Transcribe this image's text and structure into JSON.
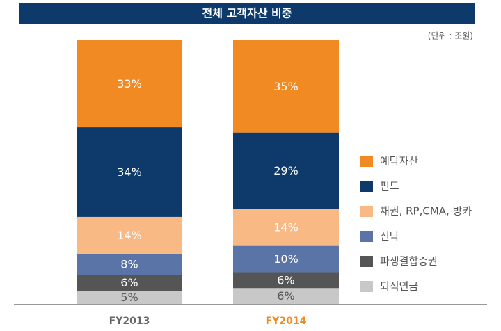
{
  "chart_data": {
    "type": "stacked_bar",
    "title": "전체 고객자산 비중",
    "subtitle": "(단위 : 조원)",
    "categories": [
      "FY2013",
      "FY2014"
    ],
    "category_colors": [
      "#666666",
      "#f28a23"
    ],
    "ylim": [
      0,
      100
    ],
    "series": [
      {
        "name": "예탁자산",
        "color": "#f28a23",
        "label_color": "#ffffff",
        "values": [
          33,
          35
        ],
        "value_labels": [
          "33%",
          "35%"
        ]
      },
      {
        "name": "펀드",
        "color": "#0d3a6b",
        "label_color": "#ffffff",
        "values": [
          34,
          29
        ],
        "value_labels": [
          "34%",
          "29%"
        ]
      },
      {
        "name": "채권, RP,CMA, 방카",
        "color": "#f9b985",
        "label_color": "#ffffff",
        "values": [
          14,
          14
        ],
        "value_labels": [
          "14%",
          "14%"
        ]
      },
      {
        "name": "신탁",
        "color": "#5a74a8",
        "label_color": "#ffffff",
        "values": [
          8,
          10
        ],
        "value_labels": [
          "8%",
          "10%"
        ]
      },
      {
        "name": "파생결합증권",
        "color": "#555555",
        "label_color": "#ffffff",
        "values": [
          6,
          6
        ],
        "value_labels": [
          "6%",
          "6%"
        ]
      },
      {
        "name": "퇴직연금",
        "color": "#c8c8c8",
        "label_color": "#555555",
        "values": [
          5,
          6
        ],
        "value_labels": [
          "5%",
          "6%"
        ]
      }
    ]
  }
}
